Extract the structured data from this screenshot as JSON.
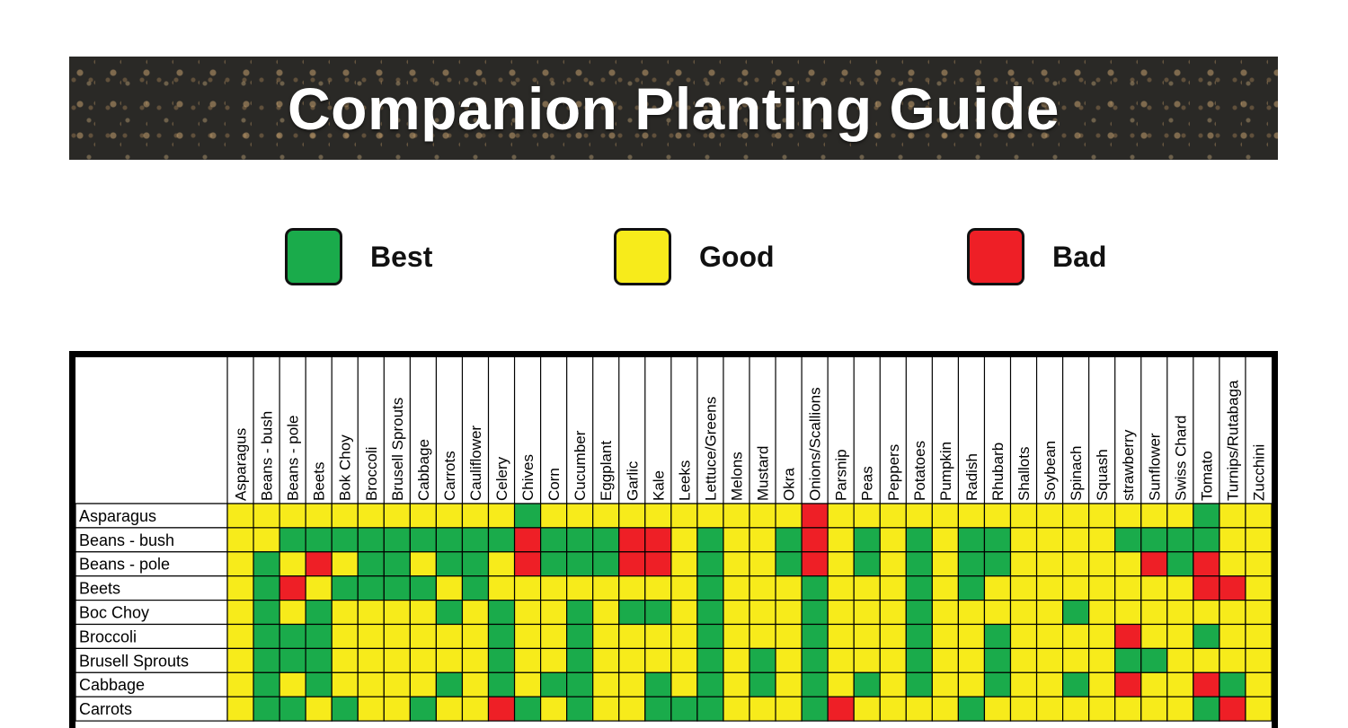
{
  "title": "Companion Planting Guide",
  "legend": [
    {
      "label": "Best",
      "color": "#1aab4b"
    },
    {
      "label": "Good",
      "color": "#f7eb1b"
    },
    {
      "label": "Bad",
      "color": "#ee1f26"
    }
  ],
  "columns": [
    "Asparagus",
    "Beans - bush",
    "Beans - pole",
    "Beets",
    "Bok Choy",
    "Broccoli",
    "Brusell Sprouts",
    "Cabbage",
    "Carrots",
    "Cauliflower",
    "Celery",
    "Chives",
    "Corn",
    "Cucumber",
    "Eggplant",
    "Garlic",
    "Kale",
    "Leeks",
    "Lettuce/Greens",
    "Melons",
    "Mustard",
    "Okra",
    "Onions/Scallions",
    "Parsnip",
    "Peas",
    "Peppers",
    "Potatoes",
    "Pumpkin",
    "Radish",
    "Rhubarb",
    "Shallots",
    "Soybean",
    "Spinach",
    "Squash",
    "strawberry",
    "Sunflower",
    "Swiss Chard",
    "Tomato",
    "Turnips/Rutabaga",
    "Zucchini"
  ],
  "rows": [
    {
      "label": "Asparagus",
      "cells": "YYYYYYYYYYYBYYYYYYYYYYRYYYYYYYYYYYYYYBYY"
    },
    {
      "label": "Beans - bush",
      "cells": "YYBBBBBBBBBRBBBRRYBYYBRYBYBYBBYYYYBBBBYY"
    },
    {
      "label": "Beans - pole",
      "cells": "YBYRYBBYBBYRBBBRRYBYYBRYBYBYBBYYYYYRBRYY"
    },
    {
      "label": "Beets",
      "cells": "YBRYBBBBYBYYYYYYYYBYYYBYYYBYBYYYYYYYYRRY"
    },
    {
      "label": "Boc Choy",
      "cells": "YBYBYYYYBYBYYBYBBYBYYYBYYYBYYYYYBYYYYYYY"
    },
    {
      "label": "Broccoli",
      "cells": "YBBBYYYYYYBYYBYYYYBYYYBYYYBYYBYYYYRYYBYY"
    },
    {
      "label": "Brusell Sprouts",
      "cells": "YBBBYYYYYYBYYBYYYYBYBYBYYYBYYBYYYYBBYYYY"
    },
    {
      "label": "Cabbage",
      "cells": "YBYBYYYYBYBYBBYYBYBYBYBYBYBYYBYYBYRYYRBY"
    },
    {
      "label": "Carrots",
      "cells": "YBBYBYYBYYRBYBYYBBBYYYBRYYYYBYYYYYYYYBRY"
    }
  ],
  "cell_colors": {
    "B": "#1aab4b",
    "Y": "#f7eb1b",
    "R": "#ee1f26"
  }
}
